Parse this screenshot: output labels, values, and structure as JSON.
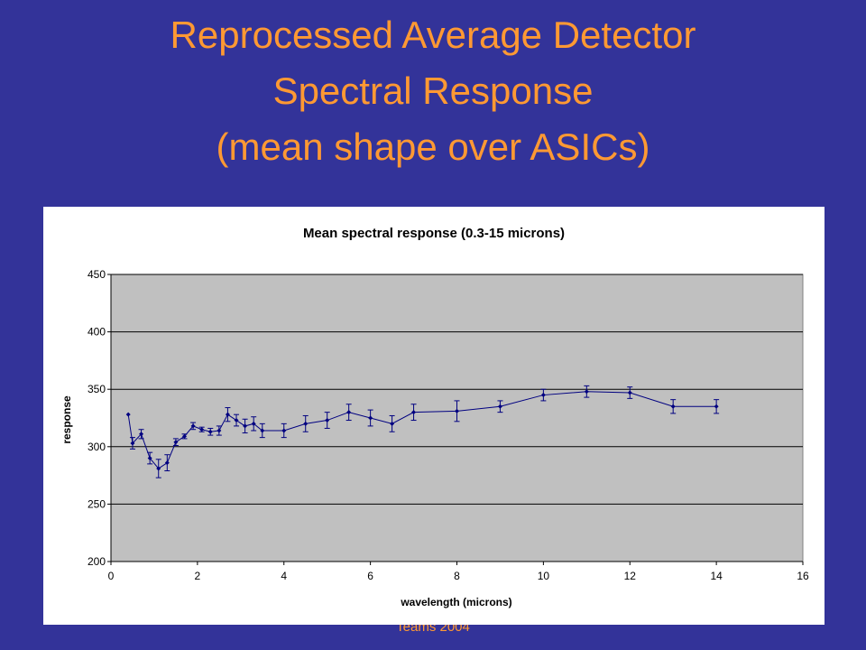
{
  "slide": {
    "title_lines": [
      "Reprocessed Average Detector",
      "Spectral Response",
      "(mean shape over ASICs)"
    ],
    "footer": "Teams 2004",
    "background_color": "#333399",
    "title_color": "#FF9933"
  },
  "chart_data": {
    "type": "line",
    "title": "Mean spectral response (0.3-15 microns)",
    "xlabel": "wavelength (microns)",
    "ylabel": "response",
    "xlim": [
      0,
      16
    ],
    "ylim": [
      200,
      450
    ],
    "x_ticks": [
      0,
      2,
      4,
      6,
      8,
      10,
      12,
      14,
      16
    ],
    "y_ticks": [
      200,
      250,
      300,
      350,
      400,
      450
    ],
    "grid": "horizontal",
    "legend": "none",
    "plot_background": "#C0C0C0",
    "series_color": "#000080",
    "series": [
      {
        "points": [
          {
            "x": 0.4,
            "y": 328,
            "err": null
          },
          {
            "x": 0.5,
            "y": 303,
            "err": 5
          },
          {
            "x": 0.7,
            "y": 311,
            "err": 4
          },
          {
            "x": 0.9,
            "y": 290,
            "err": 5
          },
          {
            "x": 1.1,
            "y": 281,
            "err": 8
          },
          {
            "x": 1.3,
            "y": 286,
            "err": 7
          },
          {
            "x": 1.5,
            "y": 304,
            "err": 3
          },
          {
            "x": 1.7,
            "y": 309,
            "err": 2
          },
          {
            "x": 1.9,
            "y": 318,
            "err": 3
          },
          {
            "x": 2.1,
            "y": 315,
            "err": 2
          },
          {
            "x": 2.3,
            "y": 313,
            "err": 3
          },
          {
            "x": 2.5,
            "y": 314,
            "err": 4
          },
          {
            "x": 2.7,
            "y": 328,
            "err": 6
          },
          {
            "x": 2.9,
            "y": 323,
            "err": 5
          },
          {
            "x": 3.1,
            "y": 318,
            "err": 6
          },
          {
            "x": 3.3,
            "y": 320,
            "err": 6
          },
          {
            "x": 3.5,
            "y": 314,
            "err": 6
          },
          {
            "x": 4.0,
            "y": 314,
            "err": 6
          },
          {
            "x": 4.5,
            "y": 320,
            "err": 7
          },
          {
            "x": 5.0,
            "y": 323,
            "err": 7
          },
          {
            "x": 5.5,
            "y": 330,
            "err": 7
          },
          {
            "x": 6.0,
            "y": 325,
            "err": 7
          },
          {
            "x": 6.5,
            "y": 320,
            "err": 7
          },
          {
            "x": 7.0,
            "y": 330,
            "err": 7
          },
          {
            "x": 8.0,
            "y": 331,
            "err": 9
          },
          {
            "x": 9.0,
            "y": 335,
            "err": 5
          },
          {
            "x": 10.0,
            "y": 345,
            "err": 5
          },
          {
            "x": 11.0,
            "y": 348,
            "err": 5
          },
          {
            "x": 12.0,
            "y": 347,
            "err": 5
          },
          {
            "x": 13.0,
            "y": 335,
            "err": 6
          },
          {
            "x": 14.0,
            "y": 335,
            "err": 6
          }
        ]
      }
    ]
  }
}
